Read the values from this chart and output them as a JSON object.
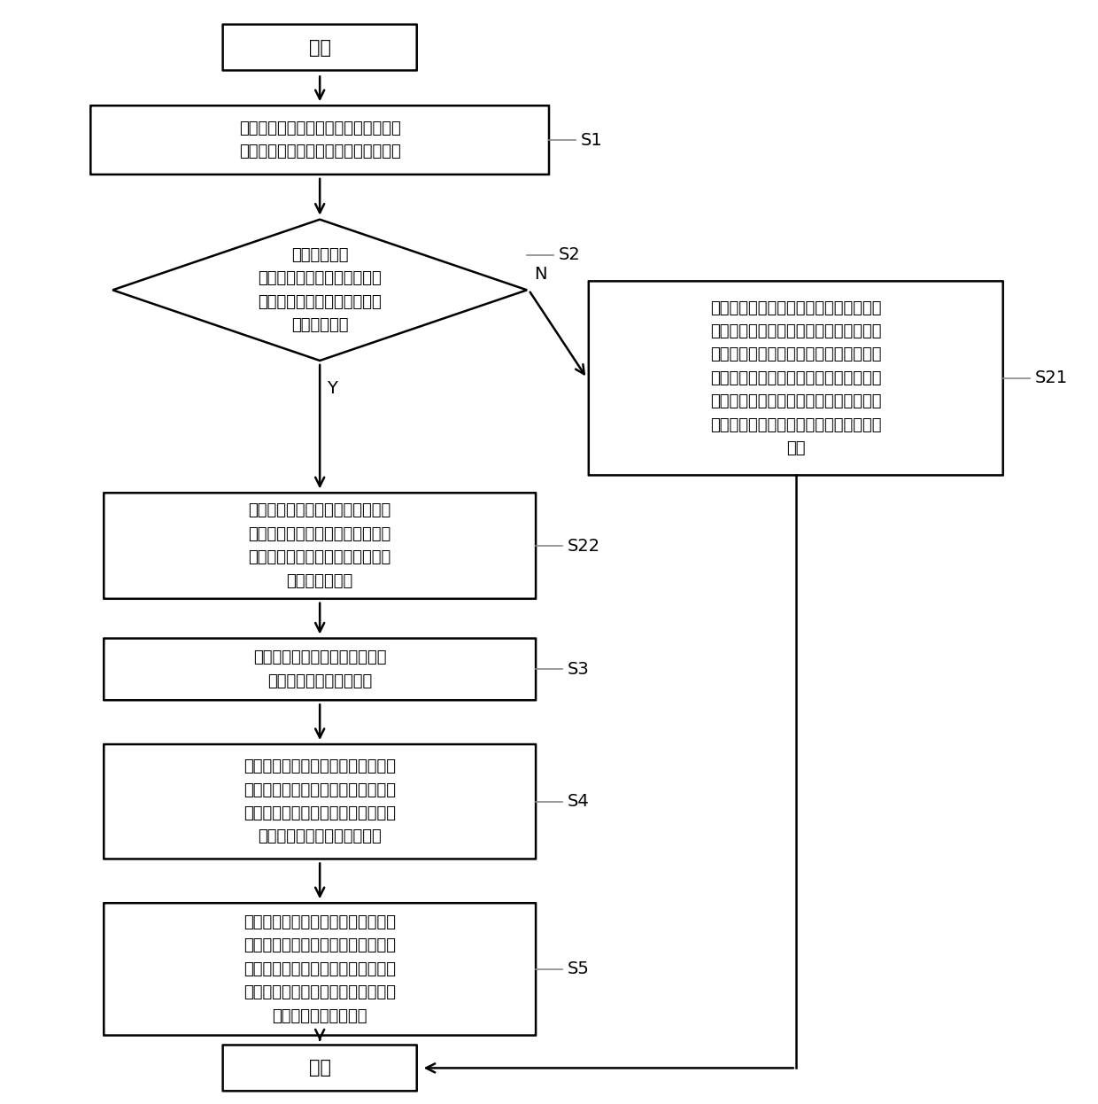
{
  "bg_color": "#ffffff",
  "line_color": "#000000",
  "text_color": "#000000",
  "start_text": "开始",
  "end_text": "结束",
  "s1_text": "依照预设的采样频率获取所述智能电脑\n实时监测使用人的脑波得到的脑波数据",
  "s2_text": "根据所述脑波\n数据判断所述使用人的脑波频\n率在指定的采样周期内是否小\n于第一预设值",
  "s21_text": "确定所述使用人的状态信息为指挥状态，\n将所述使用人的脑波频率作为输入数据，\n并根据预设的脑波分析模型，确定出所述\n使用人的脑波控制指令，发送所述脑波控\n制指令到所述按摩机械手，以控制所述按\n摩机械手执行与所述脑波控制指令对应的\n操作",
  "s22_text": "确定所述使用人的状态信息为疑似\n睡眠状态，控制所述机械按摩手的\n运作状态保持不变，发送监测指令\n至所述智能手环",
  "s3_text": "获取所述智能手环实时监测所述\n使用人的得到的生理数据",
  "s4_text": "将所述使用人的所述脑波数据和所述\n生理数据作为输入数据，通过神经网\n络模型构建的用户状态识别模型，获\n得所述使用人的睡眠状态信息",
  "s5_text": "根据所述睡眠状态信息，确定对应的\n按摩模式控制指令，发送所述按摩模\n式控制指令到所述按摩机械手，以控\n制所述按摩机械手执行与所述按摩模\n式控制指令对应的操作",
  "y_label": "Y",
  "n_label": "N",
  "font_size": 13,
  "label_font_size": 14
}
